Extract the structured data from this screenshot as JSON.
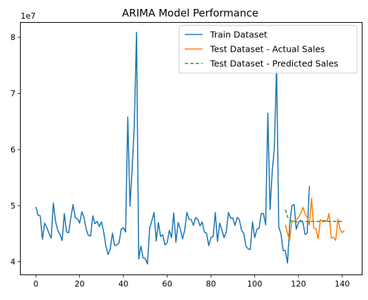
{
  "chart_data": {
    "type": "line",
    "title": "ARIMA Model Performance",
    "xlabel": "",
    "ylabel": "",
    "y_offset_label": "1e7",
    "y_tick_labels": [
      "4",
      "5",
      "6",
      "7",
      "8"
    ],
    "x_ticks": [
      0,
      20,
      40,
      60,
      80,
      100,
      120,
      140
    ],
    "y_ticks": [
      40000000,
      50000000,
      60000000,
      70000000,
      80000000
    ],
    "xlim": [
      -7.1,
      149.1
    ],
    "ylim": [
      37680000,
      82660000
    ],
    "grid": false,
    "legend_position": "top-right",
    "series": [
      {
        "name": "Train Dataset",
        "color": "#1f77b4",
        "dash": "solid",
        "x_start": 0,
        "values": [
          49800000,
          48300000,
          48200000,
          44000000,
          46900000,
          46100000,
          45100000,
          44200000,
          50500000,
          47200000,
          45600000,
          44900000,
          43800000,
          48600000,
          45300000,
          45200000,
          47900000,
          50200000,
          47800000,
          47700000,
          46900000,
          48900000,
          47900000,
          45800000,
          44700000,
          44600000,
          48200000,
          46800000,
          47200000,
          46300000,
          47100000,
          45300000,
          42800000,
          41300000,
          42300000,
          45100000,
          42900000,
          43000000,
          43400000,
          45800000,
          46100000,
          45300000,
          65800000,
          49900000,
          56500000,
          64500000,
          80900000,
          40500000,
          42800000,
          40700000,
          40600000,
          39600000,
          46000000,
          47300000,
          48800000,
          43700000,
          47000000,
          44500000,
          44800000,
          43000000,
          43400000,
          45600000,
          44300000,
          48700000,
          43500000,
          47000000,
          45900000,
          44100000,
          45600000,
          48800000,
          47600000,
          47500000,
          46500000,
          47900000,
          47600000,
          46400000,
          47100000,
          45300000,
          45100000,
          42900000,
          44300000,
          44500000,
          48800000,
          43600000,
          46900000,
          45700000,
          44300000,
          45300000,
          48800000,
          47800000,
          47800000,
          46500000,
          47900000,
          47500000,
          45600000,
          45100000,
          42800000,
          42300000,
          42200000,
          47100000,
          44300000,
          45800000,
          46000000,
          48600000,
          48600000,
          46600000,
          66500000,
          49300000,
          56000000,
          60400000,
          75000000,
          46200000,
          45000000,
          42000000,
          42000000,
          39800000,
          46700000,
          50000000,
          50200000,
          45800000,
          47000000,
          47400000,
          47100000,
          44900000,
          45100000,
          53500000
        ]
      },
      {
        "name": "Test Dataset - Actual Sales",
        "color": "#ff7f0e",
        "dash": "solid",
        "x_start": 114,
        "values": [
          46600000,
          45100000,
          43800000,
          47300000,
          47200000,
          47500000,
          47900000,
          48600000,
          49700000,
          48600000,
          47900000,
          46600000,
          51300000,
          46000000,
          45900000,
          44100000,
          47500000,
          47300000,
          47400000,
          47200000,
          48600000,
          44200000,
          44400000,
          43800000,
          47600000,
          45800000,
          45200000,
          45600000
        ]
      },
      {
        "name": "Test Dataset - Predicted Sales",
        "color": "#2ca02c",
        "dash": "dashed",
        "x_start": 114,
        "values": [
          49300000,
          48000000,
          47500000,
          47200000,
          47100000,
          47100000,
          47200000,
          47200000,
          47200000,
          47200000,
          47200000,
          47200000,
          47200000,
          47200000,
          47200000,
          47200000,
          47200000,
          47200000,
          47200000,
          47200000,
          47200000,
          47200000,
          47200000,
          47200000,
          47200000,
          47200000,
          47200000
        ]
      }
    ]
  }
}
